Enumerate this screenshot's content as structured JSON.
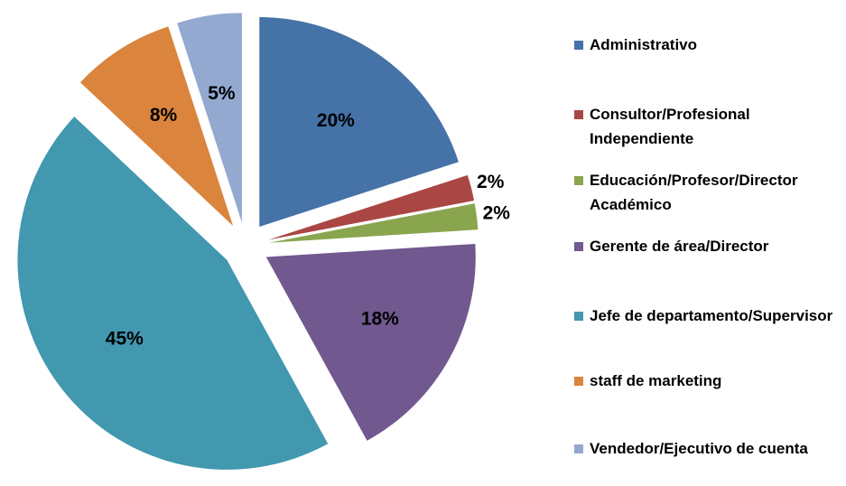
{
  "chart_data": {
    "type": "pie",
    "categories": [
      "Administrativo",
      "Consultor/Profesional Independiente",
      "Educación/Profesor/Director Académico",
      "Gerente de área/Director",
      "Jefe de departamento/Supervisor",
      "staff de marketing",
      "Vendedor/Ejecutivo de cuenta"
    ],
    "values": [
      20,
      2,
      2,
      18,
      45,
      8,
      5
    ],
    "value_labels": [
      "20%",
      "2%",
      "2%",
      "18%",
      "45%",
      "8%",
      "5%"
    ],
    "colors": [
      "#4572a7",
      "#aa4643",
      "#89a54e",
      "#71588f",
      "#4198af",
      "#db843d",
      "#93a9cf"
    ],
    "legend": "right"
  }
}
